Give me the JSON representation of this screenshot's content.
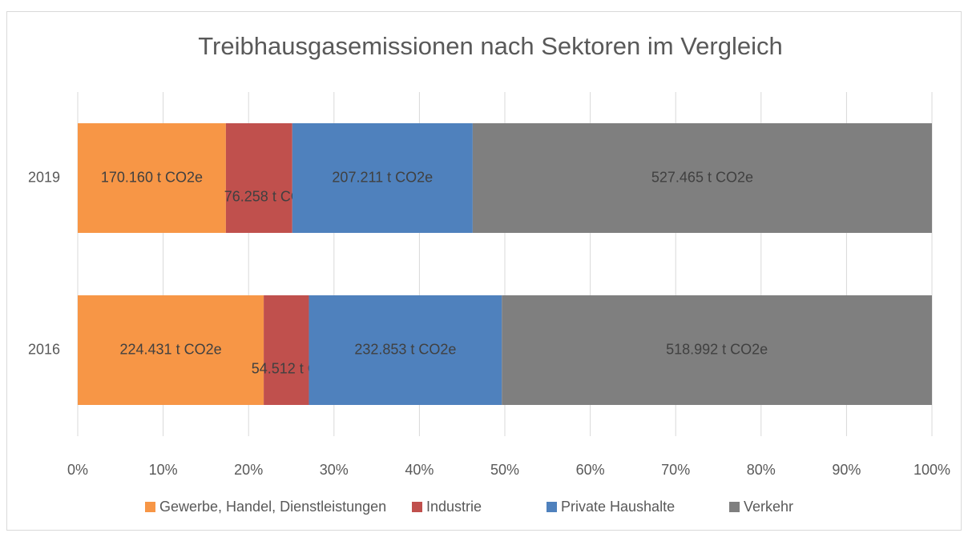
{
  "chart_data": {
    "type": "bar",
    "orientation": "horizontal",
    "stacked": "percent",
    "title": "Treibhausgasemissionen nach Sektoren im Vergleich",
    "categories": [
      "2019",
      "2016"
    ],
    "series": [
      {
        "name": "Gewerbe, Handel, Dienstleistungen",
        "color": "#f79646",
        "values": [
          170160,
          224431
        ],
        "value_labels": [
          "170.160 t CO2e",
          "224.431 t CO2e"
        ]
      },
      {
        "name": "Industrie",
        "color": "#c0504d",
        "values": [
          76258,
          54512
        ],
        "value_labels": [
          "76.258 t CO2e",
          "54.512 t CO2e"
        ]
      },
      {
        "name": "Private Haushalte",
        "color": "#4f81bd",
        "values": [
          207211,
          232853
        ],
        "value_labels": [
          "207.211 t CO2e",
          "232.853 t CO2e"
        ]
      },
      {
        "name": "Verkehr",
        "color": "#7f7f7f",
        "values": [
          527465,
          518992
        ],
        "value_labels": [
          "527.465 t CO2e",
          "518.992 t CO2e"
        ]
      }
    ],
    "xlim": [
      0,
      100
    ],
    "xticks": [
      {
        "value": 0,
        "label": "0%"
      },
      {
        "value": 10,
        "label": "10%"
      },
      {
        "value": 20,
        "label": "20%"
      },
      {
        "value": 30,
        "label": "30%"
      },
      {
        "value": 40,
        "label": "40%"
      },
      {
        "value": 50,
        "label": "50%"
      },
      {
        "value": 60,
        "label": "60%"
      },
      {
        "value": 70,
        "label": "70%"
      },
      {
        "value": 80,
        "label": "80%"
      },
      {
        "value": 90,
        "label": "90%"
      },
      {
        "value": 100,
        "label": "100%"
      }
    ],
    "grid": true,
    "legend": "bottom"
  }
}
